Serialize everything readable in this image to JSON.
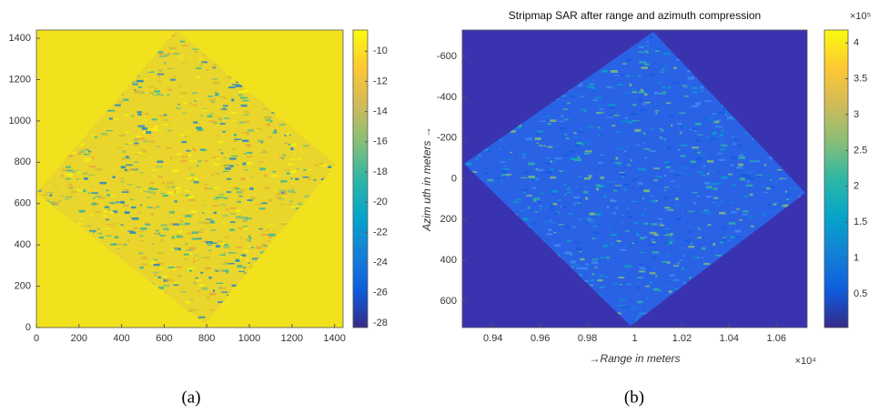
{
  "chart_data": [
    {
      "type": "image",
      "colormap": "parula",
      "xlim": [
        0,
        1440
      ],
      "xticks": [
        0,
        200,
        400,
        600,
        800,
        1000,
        1200,
        1400
      ],
      "ylim": [
        0,
        1440
      ],
      "yticks": [
        0,
        200,
        400,
        600,
        800,
        1000,
        1200,
        1400
      ],
      "colorbar": {
        "clim": [
          -28.3,
          -8.6
        ],
        "ticks": [
          -10,
          -12,
          -14,
          -16,
          -18,
          -20,
          -22,
          -24,
          -26,
          -28
        ]
      }
    },
    {
      "type": "image",
      "colormap": "parula",
      "title": "Stripmap SAR after range and azimuth compression",
      "x_label": "→Range in meters",
      "y_label": "Azim uth in meters →",
      "xlim": [
        0.927,
        1.073
      ],
      "xticks": [
        0.94,
        0.96,
        0.98,
        1,
        1.02,
        1.04,
        1.06
      ],
      "x_multiplier": "×10⁴",
      "ylim": [
        730,
        -730
      ],
      "yticks": [
        -600,
        -400,
        -200,
        0,
        200,
        400,
        600
      ],
      "colorbar": {
        "clim": [
          0.03,
          4.18
        ],
        "ticks": [
          0.5,
          1,
          1.5,
          2,
          2.5,
          3,
          3.5,
          4
        ],
        "multiplier": "×10⁵"
      }
    }
  ],
  "captions": [
    "(a)",
    "(b)"
  ]
}
